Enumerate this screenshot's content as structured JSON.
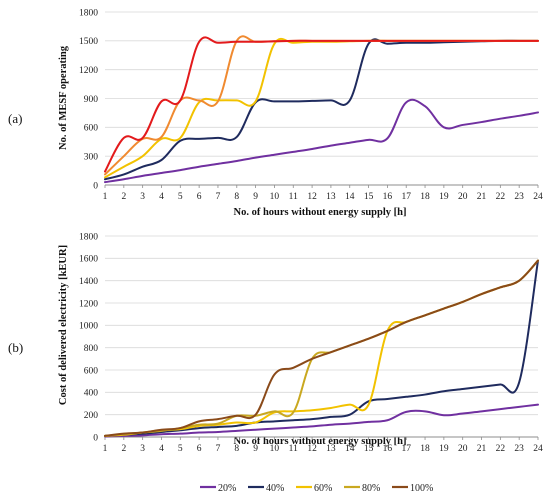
{
  "chart_data": [
    {
      "panel_label": "(a)",
      "type": "line",
      "xlabel": "No. of hours without energy supply [h]",
      "ylabel": "No. of MESF operating",
      "xlim": [
        1,
        24
      ],
      "ylim": [
        0,
        1800
      ],
      "yticks": [
        0,
        300,
        600,
        900,
        1200,
        1500,
        1800
      ],
      "xticks": [
        1,
        2,
        3,
        4,
        5,
        6,
        7,
        8,
        9,
        10,
        11,
        12,
        13,
        14,
        15,
        16,
        17,
        18,
        19,
        20,
        21,
        22,
        23,
        24
      ],
      "grid": "horizontal",
      "series": [
        {
          "name": "20%",
          "color": "#7030a0",
          "x": [
            1,
            2,
            3,
            4,
            5,
            6,
            7,
            8,
            9,
            10,
            11,
            12,
            13,
            14,
            15,
            16,
            17,
            18,
            19,
            20,
            21,
            22,
            23,
            24
          ],
          "values": [
            30,
            60,
            95,
            125,
            155,
            190,
            220,
            250,
            285,
            315,
            345,
            375,
            410,
            440,
            470,
            485,
            860,
            820,
            600,
            625,
            655,
            690,
            720,
            755
          ]
        },
        {
          "name": "40%",
          "color": "#1f2b5e",
          "x": [
            1,
            2,
            3,
            4,
            5,
            6,
            7,
            8,
            9,
            10,
            11,
            12,
            13,
            14,
            15,
            16,
            17,
            18,
            19,
            20,
            21,
            22,
            23,
            24
          ],
          "values": [
            60,
            110,
            190,
            260,
            460,
            480,
            490,
            500,
            860,
            870,
            870,
            875,
            880,
            880,
            1470,
            1470,
            1480,
            1480,
            1485,
            1490,
            1495,
            1500,
            1500,
            1500
          ]
        },
        {
          "name": "60%",
          "color": "#f2c200",
          "x": [
            1,
            2,
            3,
            4,
            5,
            6,
            7,
            8,
            9,
            10,
            11,
            12,
            13,
            14,
            15,
            16,
            17,
            18,
            19,
            20,
            21,
            22,
            23,
            24
          ],
          "values": [
            80,
            190,
            300,
            480,
            490,
            860,
            880,
            880,
            870,
            1470,
            1480,
            1490,
            1490,
            1495,
            1500,
            1500,
            1500,
            1500,
            1500,
            1500,
            1500,
            1500,
            1500,
            1500
          ]
        },
        {
          "name": "80%",
          "color": "#f08a30",
          "x": [
            1,
            2,
            3,
            4,
            5,
            6,
            7,
            8,
            9,
            10,
            11,
            12,
            13,
            14,
            15,
            16,
            17,
            18,
            19,
            20,
            21,
            22,
            23,
            24
          ],
          "values": [
            110,
            300,
            480,
            500,
            880,
            880,
            870,
            1500,
            1490,
            1495,
            1500,
            1500,
            1500,
            1500,
            1500,
            1500,
            1500,
            1500,
            1500,
            1500,
            1500,
            1500,
            1500,
            1500
          ]
        },
        {
          "name": "100%",
          "color": "#e31a1c",
          "x": [
            1,
            2,
            3,
            4,
            5,
            6,
            7,
            8,
            9,
            10,
            11,
            12,
            13,
            14,
            15,
            16,
            17,
            18,
            19,
            20,
            21,
            22,
            23,
            24
          ],
          "values": [
            140,
            490,
            490,
            870,
            880,
            1490,
            1480,
            1490,
            1490,
            1495,
            1500,
            1500,
            1500,
            1500,
            1500,
            1500,
            1500,
            1500,
            1500,
            1500,
            1500,
            1500,
            1500,
            1500
          ]
        }
      ]
    },
    {
      "panel_label": "(b)",
      "type": "line",
      "xlabel": "No. of hours without energy supply [h]",
      "ylabel": "Cost of delivered electricity [kEUR]",
      "xlim": [
        1,
        24
      ],
      "ylim": [
        0,
        1800
      ],
      "yticks": [
        0,
        200,
        400,
        600,
        800,
        1000,
        1200,
        1400,
        1600,
        1800
      ],
      "xticks": [
        1,
        2,
        3,
        4,
        5,
        6,
        7,
        8,
        9,
        10,
        11,
        12,
        13,
        14,
        15,
        16,
        17,
        18,
        19,
        20,
        21,
        22,
        23,
        24
      ],
      "grid": "horizontal",
      "series": [
        {
          "name": "20%",
          "color": "#7030a0",
          "x": [
            1,
            2,
            3,
            4,
            5,
            6,
            7,
            8,
            9,
            10,
            11,
            12,
            13,
            14,
            15,
            16,
            17,
            18,
            19,
            20,
            21,
            22,
            23,
            24
          ],
          "values": [
            5,
            10,
            15,
            25,
            30,
            40,
            45,
            55,
            65,
            75,
            85,
            95,
            110,
            120,
            135,
            150,
            225,
            230,
            195,
            210,
            230,
            250,
            270,
            290
          ]
        },
        {
          "name": "40%",
          "color": "#1f2b5e",
          "x": [
            1,
            2,
            3,
            4,
            5,
            6,
            7,
            8,
            9,
            10,
            11,
            12,
            13,
            14,
            15,
            16,
            17,
            18,
            19,
            20,
            21,
            22,
            23,
            24
          ],
          "values": [
            10,
            20,
            30,
            45,
            60,
            80,
            90,
            100,
            130,
            140,
            150,
            160,
            180,
            200,
            320,
            340,
            360,
            380,
            410,
            430,
            450,
            470,
            490,
            1580
          ]
        },
        {
          "name": "60%",
          "color": "#f2c200",
          "x": [
            1,
            2,
            3,
            4,
            5,
            6,
            7,
            8,
            9,
            10,
            11,
            12,
            13,
            14,
            15,
            16,
            17,
            18,
            19,
            20,
            21,
            22,
            23,
            24
          ],
          "values": [
            10,
            20,
            40,
            60,
            70,
            100,
            110,
            130,
            130,
            220,
            230,
            240,
            260,
            290,
            290,
            950,
            1030,
            1090,
            1150,
            1210,
            1280,
            1340,
            1400,
            1580
          ]
        },
        {
          "name": "80%",
          "color": "#c9a820",
          "x": [
            1,
            2,
            3,
            4,
            5,
            6,
            7,
            8,
            9,
            10,
            11,
            12,
            13,
            14,
            15,
            16,
            17,
            18,
            19,
            20,
            21,
            22,
            23,
            24
          ],
          "values": [
            10,
            25,
            40,
            55,
            80,
            110,
            120,
            190,
            190,
            230,
            220,
            700,
            760,
            820,
            880,
            950,
            1030,
            1090,
            1150,
            1210,
            1280,
            1340,
            1400,
            1580
          ]
        },
        {
          "name": "100%",
          "color": "#8a4a1a",
          "x": [
            1,
            2,
            3,
            4,
            5,
            6,
            7,
            8,
            9,
            10,
            11,
            12,
            13,
            14,
            15,
            16,
            17,
            18,
            19,
            20,
            21,
            22,
            23,
            24
          ],
          "values": [
            10,
            30,
            40,
            65,
            80,
            140,
            160,
            190,
            200,
            560,
            620,
            700,
            760,
            820,
            880,
            950,
            1030,
            1090,
            1150,
            1210,
            1280,
            1340,
            1400,
            1580
          ]
        }
      ]
    }
  ],
  "legend": [
    {
      "label": "20%",
      "color": "#7030a0"
    },
    {
      "label": "40%",
      "color": "#1f2b5e"
    },
    {
      "label": "60%",
      "color": "#f2c200"
    },
    {
      "label": "80%",
      "color": "#c9a820"
    },
    {
      "label": "100%",
      "color": "#8a4a1a"
    }
  ]
}
